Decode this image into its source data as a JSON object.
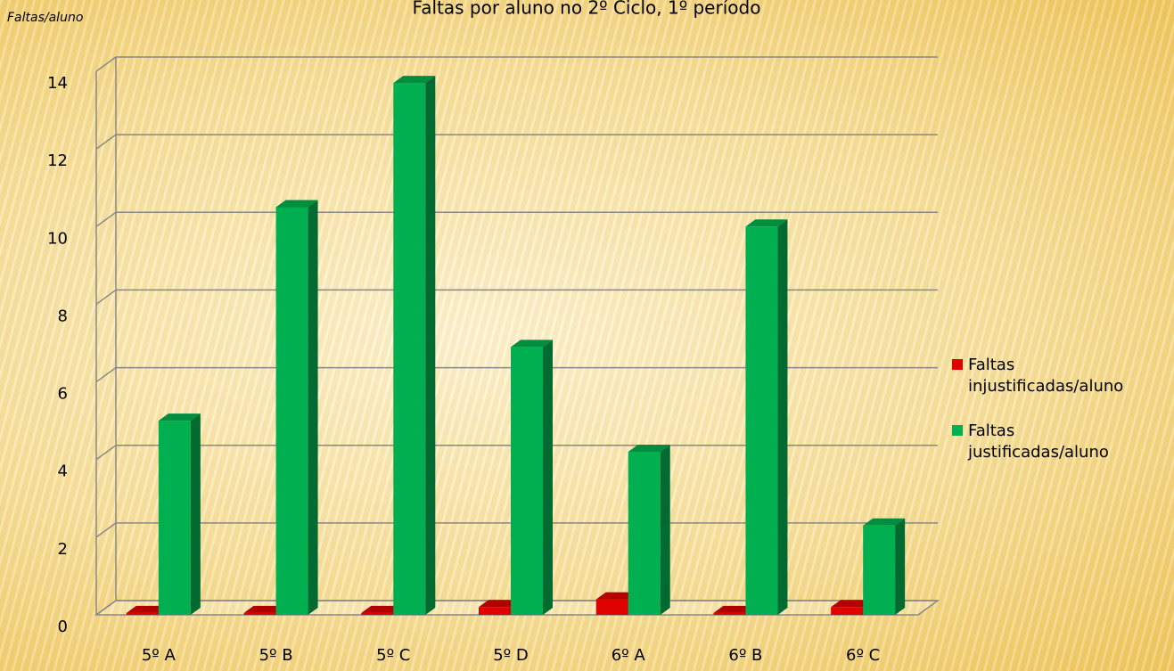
{
  "chart_data": {
    "type": "bar3d",
    "title": "Faltas por aluno no 2º Ciclo, 1º período",
    "y_label": "Faltas/aluno",
    "categories": [
      "5º A",
      "5º B",
      "5º C",
      "5º D",
      "6º A",
      "6º B",
      "6º C"
    ],
    "series": [
      {
        "name": "Faltas injustificadas/aluno",
        "color": "#e00000",
        "values": [
          0.05,
          0.05,
          0.05,
          0.2,
          0.4,
          0.05,
          0.2
        ]
      },
      {
        "name": "Faltas justificadas/aluno",
        "color": "#00b050",
        "values": [
          5.0,
          10.5,
          13.7,
          6.9,
          4.2,
          10.0,
          2.3
        ]
      }
    ],
    "ylim": [
      0,
      14
    ],
    "yticks": [
      0,
      2,
      4,
      6,
      8,
      10,
      12,
      14
    ],
    "grid": true,
    "legend": "right"
  }
}
